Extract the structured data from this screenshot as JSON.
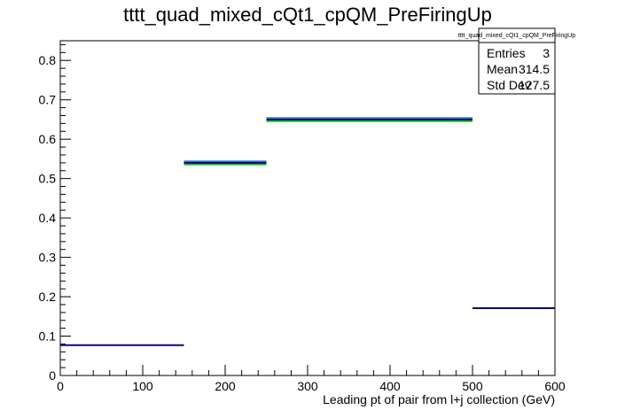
{
  "chart_data": {
    "type": "histogram",
    "title": "tttt_quad_mixed_cQt1_cpQM_PreFiringUp",
    "xlabel": "Leading pt of pair from l+j collection (GeV)",
    "ylabel": "",
    "xlim": [
      0,
      600
    ],
    "ylim": [
      0,
      0.85
    ],
    "x_ticks": [
      "0",
      "100",
      "200",
      "300",
      "400",
      "500",
      "600"
    ],
    "y_ticks": [
      "0",
      "0.1",
      "0.2",
      "0.3",
      "0.4",
      "0.5",
      "0.6",
      "0.7",
      "0.8"
    ],
    "bins": [
      {
        "x0": 0,
        "x1": 150,
        "value": 0.077
      },
      {
        "x0": 150,
        "x1": 250,
        "value": 0.54
      },
      {
        "x0": 250,
        "x1": 500,
        "value": 0.65
      },
      {
        "x0": 500,
        "x1": 600,
        "value": 0.171
      }
    ],
    "band_colors": {
      "line": "#0a0a6e",
      "upper": "#1f5fd0",
      "lower": "#10c010"
    },
    "band_halfwidth": [
      0,
      0.004,
      0.004,
      0
    ],
    "stats_box": {
      "title": "tttt_quad_mixed_cQt1_cpQM_PreFiringUp",
      "rows": [
        {
          "label": "Entries",
          "value": "3"
        },
        {
          "label": "Mean",
          "value": "314.5"
        },
        {
          "label": "Std Dev",
          "value": "127.5"
        }
      ]
    }
  }
}
